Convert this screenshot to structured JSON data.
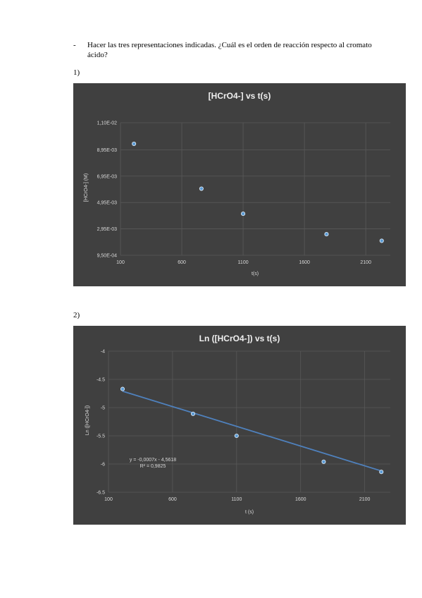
{
  "document": {
    "bullet": "-",
    "question": "Hacer las tres representaciones indicadas. ¿Cuál es el orden de reacción respecto al cromato ácido?",
    "label_1": "1)",
    "label_2": "2)"
  },
  "colors": {
    "chart_background": "#404040",
    "gridline": "#595959",
    "marker_fill": "#5b9bd5",
    "marker_stroke": "#dce9f5",
    "trendline": "#4f81bd"
  },
  "chart_data": [
    {
      "type": "scatter",
      "title": "[HCrO4-] vs t(s)",
      "xlabel": "t(s)",
      "ylabel": "[HCrO4-] (M)",
      "xlim": [
        100,
        2300
      ],
      "ylim": [
        0.00095,
        0.011
      ],
      "xticks": [
        100,
        600,
        1100,
        1600,
        2100
      ],
      "xtick_labels": [
        "100",
        "600",
        "1100",
        "1600",
        "2100"
      ],
      "yticks": [
        0.00095,
        0.00295,
        0.00495,
        0.00695,
        0.00895,
        0.011
      ],
      "ytick_labels": [
        "9,50E-04",
        "2,95E-03",
        "4,95E-03",
        "6,95E-03",
        "8,95E-03",
        "1,10E-02"
      ],
      "grid": true,
      "x": [
        210,
        760,
        1100,
        1780,
        2230
      ],
      "y": [
        0.0094,
        0.006,
        0.0041,
        0.00255,
        0.00205
      ]
    },
    {
      "type": "scatter",
      "title": "Ln ([HCrO4-]) vs t(s)",
      "xlabel": "t (s)",
      "ylabel": "Ln ([HCrO4-])",
      "xlim": [
        100,
        2300
      ],
      "ylim": [
        -6.5,
        -4
      ],
      "xticks": [
        100,
        600,
        1100,
        1600,
        2100
      ],
      "xtick_labels": [
        "100",
        "600",
        "1100",
        "1600",
        "2100"
      ],
      "yticks": [
        -6.5,
        -6,
        -5.5,
        -5,
        -4.5,
        -4
      ],
      "ytick_labels": [
        "-6.5",
        "-6",
        "-5.5",
        "-5",
        "-4.5",
        "-4"
      ],
      "grid": true,
      "x": [
        210,
        760,
        1100,
        1780,
        2230
      ],
      "y": [
        -4.67,
        -5.11,
        -5.5,
        -5.96,
        -6.14
      ],
      "trendline": {
        "slope": -0.0007,
        "intercept": -4.5618,
        "x_range": [
          210,
          2230
        ]
      },
      "equation_line1": "y = -0,0007x - 4,5618",
      "equation_line2": "R² = 0,9825"
    }
  ]
}
